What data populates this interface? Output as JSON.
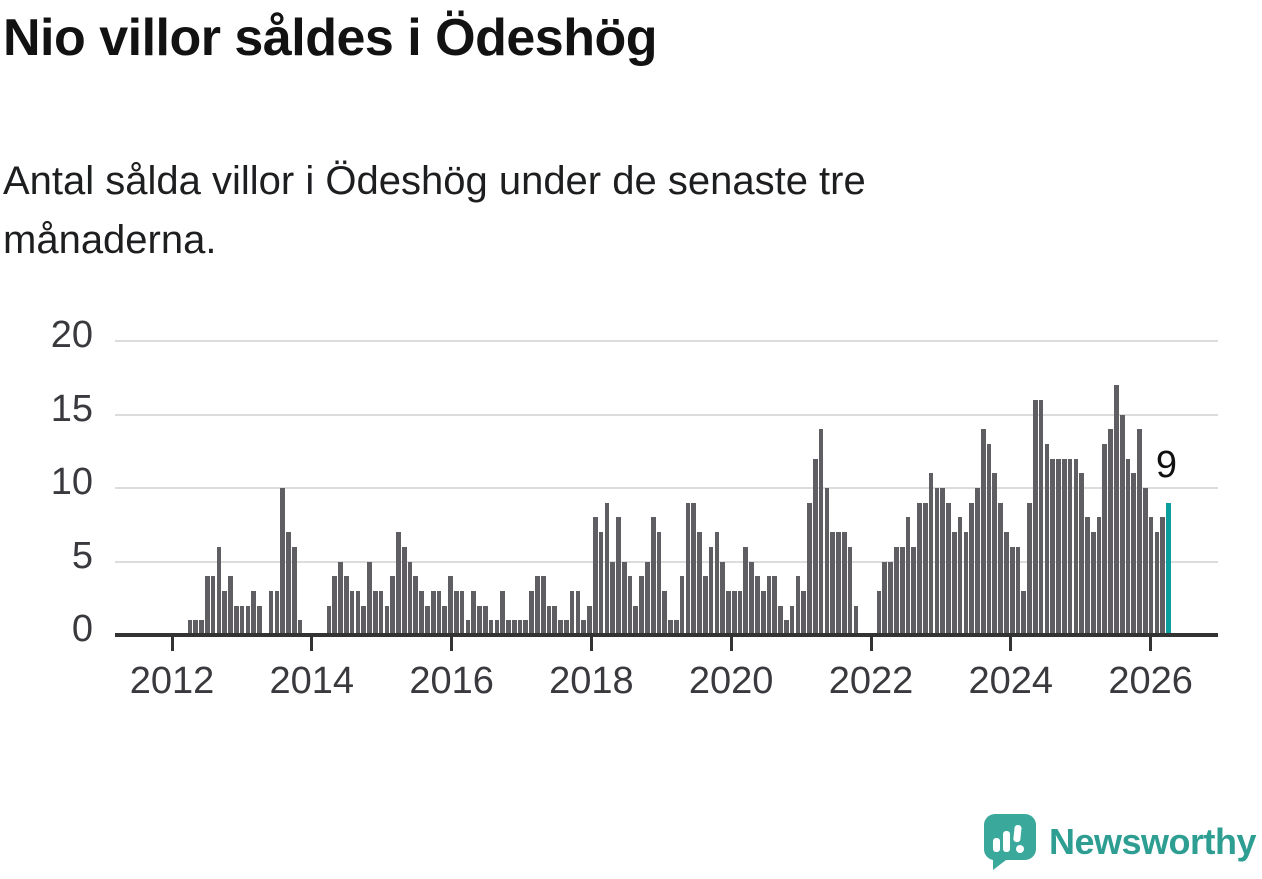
{
  "header": {
    "title": "Nio villor såldes i Ödeshög",
    "subtitle": "Antal sålda villor i Ödeshög under de senaste tre månaderna."
  },
  "chart": {
    "y_ticks": [
      0,
      5,
      10,
      15,
      20
    ],
    "x_ticks": [
      2012,
      2014,
      2016,
      2018,
      2020,
      2022,
      2024,
      2026
    ],
    "annotation_value": "9",
    "colors": {
      "bar": "#5f5e63",
      "highlight": "#0b9e9e",
      "grid": "#dcdcdc",
      "axis": "#333333",
      "tick_text": "#3a3a3e",
      "annotation_text": "#111111"
    }
  },
  "chart_data": {
    "type": "bar",
    "title": "Nio villor såldes i Ödeshög",
    "subtitle": "Antal sålda villor i Ödeshög under de senaste tre månaderna.",
    "xlabel": "",
    "ylabel": "",
    "ylim": [
      0,
      20
    ],
    "x_start": "2012-04",
    "x_frequency": "monthly",
    "grid": true,
    "highlight_last": true,
    "last_value_label": "9",
    "values": [
      1,
      1,
      1,
      4,
      4,
      6,
      3,
      4,
      2,
      2,
      2,
      3,
      2,
      0,
      3,
      3,
      10,
      7,
      6,
      1,
      0,
      0,
      0,
      0,
      2,
      4,
      5,
      4,
      3,
      3,
      2,
      5,
      3,
      3,
      2,
      4,
      7,
      6,
      5,
      4,
      3,
      2,
      3,
      3,
      2,
      4,
      3,
      3,
      1,
      3,
      2,
      2,
      1,
      1,
      3,
      1,
      1,
      1,
      1,
      3,
      4,
      4,
      2,
      2,
      1,
      1,
      3,
      3,
      1,
      2,
      8,
      7,
      9,
      5,
      8,
      5,
      4,
      2,
      4,
      5,
      8,
      7,
      3,
      1,
      1,
      4,
      9,
      9,
      7,
      4,
      6,
      7,
      5,
      3,
      3,
      3,
      6,
      5,
      4,
      3,
      4,
      4,
      2,
      1,
      2,
      4,
      3,
      9,
      12,
      14,
      10,
      7,
      7,
      7,
      6,
      2,
      0,
      0,
      0,
      3,
      5,
      5,
      6,
      6,
      8,
      6,
      9,
      9,
      11,
      10,
      10,
      9,
      7,
      8,
      7,
      9,
      10,
      14,
      13,
      11,
      9,
      7,
      6,
      6,
      3,
      9,
      16,
      16,
      13,
      12,
      12,
      12,
      12,
      12,
      11,
      8,
      7,
      8,
      13,
      14,
      17,
      15,
      12,
      11,
      14,
      10,
      8,
      7,
      8,
      9
    ]
  },
  "branding": {
    "logo_text": "Newsworthy",
    "logo_color": "#2e9e93",
    "logo_icon": "speech-bubble-bar-chart-icon"
  }
}
